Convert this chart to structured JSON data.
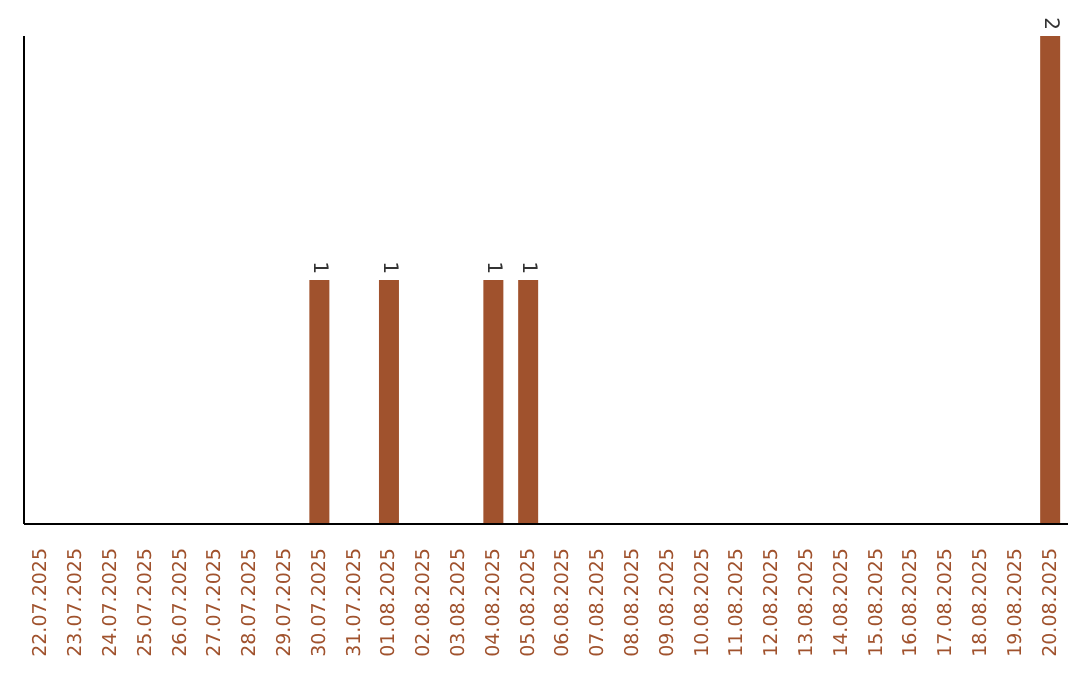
{
  "chart_data": {
    "type": "bar",
    "categories": [
      "22.07.2025",
      "23.07.2025",
      "24.07.2025",
      "25.07.2025",
      "26.07.2025",
      "27.07.2025",
      "28.07.2025",
      "29.07.2025",
      "30.07.2025",
      "31.07.2025",
      "01.08.2025",
      "02.08.2025",
      "03.08.2025",
      "04.08.2025",
      "05.08.2025",
      "06.08.2025",
      "07.08.2025",
      "08.08.2025",
      "09.08.2025",
      "10.08.2025",
      "11.08.2025",
      "12.08.2025",
      "13.08.2025",
      "14.08.2025",
      "15.08.2025",
      "16.08.2025",
      "17.08.2025",
      "18.08.2025",
      "19.08.2025",
      "20.08.2025"
    ],
    "values": [
      0,
      0,
      0,
      0,
      0,
      0,
      0,
      0,
      1,
      0,
      1,
      0,
      0,
      1,
      1,
      0,
      0,
      0,
      0,
      0,
      0,
      0,
      0,
      0,
      0,
      0,
      0,
      0,
      0,
      2
    ],
    "value_labels": [
      null,
      null,
      null,
      null,
      null,
      null,
      null,
      null,
      "1",
      null,
      "1",
      null,
      null,
      "1",
      "1",
      null,
      null,
      null,
      null,
      null,
      null,
      null,
      null,
      null,
      null,
      null,
      null,
      null,
      null,
      "2"
    ],
    "color": "#a0522d",
    "grid": false,
    "legend": false
  }
}
